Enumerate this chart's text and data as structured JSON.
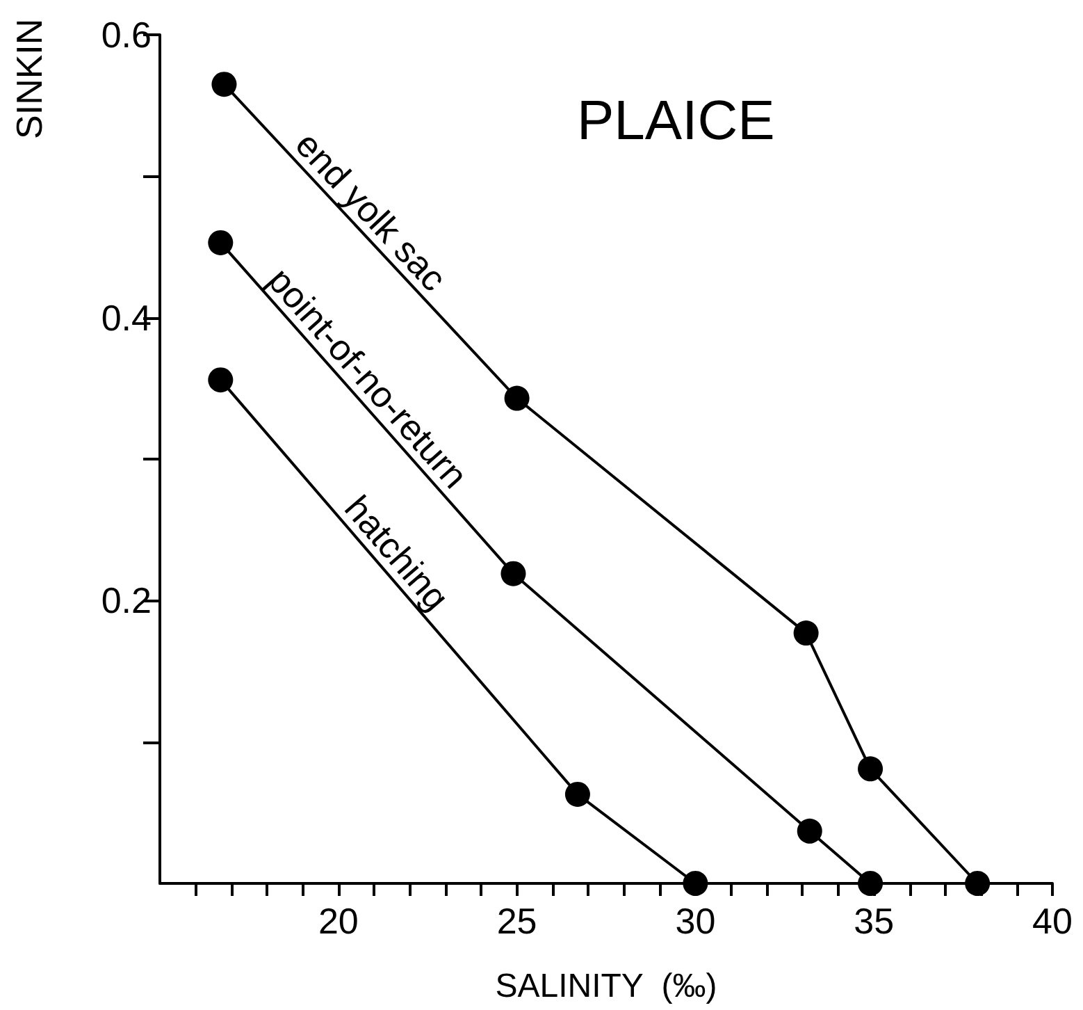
{
  "chart_data": {
    "type": "line",
    "title": "PLAICE",
    "xlabel": "SALINITY  (‰)",
    "ylabel": "SINKIN",
    "series": [
      {
        "name": "end yolk sac",
        "color": "#000000",
        "x": [
          16.8,
          25.0,
          33.1,
          34.9,
          37.9
        ],
        "values": [
          0.565,
          0.343,
          0.177,
          0.081,
          0
        ]
      },
      {
        "name": "point-of-no-return",
        "color": "#000000",
        "x": [
          16.7,
          24.9,
          33.2,
          34.9
        ],
        "values": [
          0.453,
          0.219,
          0.037,
          0
        ]
      },
      {
        "name": "hatching",
        "color": "#000000",
        "x": [
          16.7,
          26.7,
          30.0
        ],
        "values": [
          0.356,
          0.063,
          0
        ]
      }
    ],
    "xlim": [
      15,
      40
    ],
    "xticks": [
      {
        "value": 16,
        "label": null
      },
      {
        "value": 17,
        "label": null
      },
      {
        "value": 18,
        "label": null
      },
      {
        "value": 19,
        "label": null
      },
      20,
      {
        "value": 21,
        "label": null
      },
      {
        "value": 22,
        "label": null
      },
      {
        "value": 23,
        "label": null
      },
      {
        "value": 24,
        "label": null
      },
      25,
      {
        "value": 26,
        "label": null
      },
      {
        "value": 27,
        "label": null
      },
      {
        "value": 28,
        "label": null
      },
      {
        "value": 29,
        "label": null
      },
      30,
      {
        "value": 31,
        "label": null
      },
      {
        "value": 32,
        "label": null
      },
      {
        "value": 33,
        "label": null
      },
      {
        "value": 34,
        "label": null
      },
      35,
      {
        "value": 36,
        "label": null
      },
      {
        "value": 37,
        "label": null
      },
      {
        "value": 38,
        "label": null
      },
      {
        "value": 39,
        "label": null
      },
      40
    ],
    "ylim": [
      0,
      0.6
    ],
    "yticks": [
      {
        "value": 0.1,
        "label": null
      },
      0.2,
      {
        "value": 0.3,
        "label": null
      },
      0.4,
      {
        "value": 0.5,
        "label": null
      },
      0.6
    ],
    "grid": false,
    "legend": false,
    "marker": "circle",
    "line_style": "solid"
  }
}
